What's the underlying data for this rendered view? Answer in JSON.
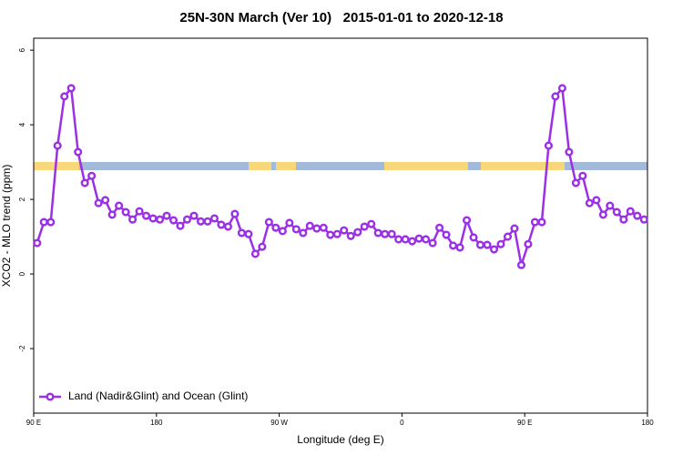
{
  "chart_data": {
    "type": "line",
    "title": "25N-30N March (Ver 10)   2015-01-01 to 2020-12-18",
    "x_label": "Longitude (deg E)",
    "y_label": "XCO2 - MLO trend (ppm)",
    "xlim": [
      90,
      540
    ],
    "xticks": [
      {
        "value": 90,
        "label": "90 E"
      },
      {
        "value": 180,
        "label": "180"
      },
      {
        "value": 270,
        "label": "90 W"
      },
      {
        "value": 360,
        "label": "0"
      },
      {
        "value": 450,
        "label": "90 E"
      },
      {
        "value": 540,
        "label": "180"
      }
    ],
    "ylim": [
      -3.73,
      6.32
    ],
    "yticks": [
      -2,
      0,
      2,
      4,
      6
    ],
    "grid": false,
    "legend_position": "bottom-left",
    "series": [
      {
        "name": "Land (Nadir&Glint) and Ocean (Glint)",
        "color": "#9b30e6",
        "x": [
          92.5,
          97.5,
          102.5,
          107.5,
          112.5,
          117.5,
          122.5,
          127.5,
          132.5,
          137.5,
          142.5,
          147.5,
          152.5,
          157.5,
          162.5,
          167.5,
          172.5,
          177.5,
          182.5,
          187.5,
          192.5,
          197.5,
          202.5,
          207.5,
          212.5,
          217.5,
          222.5,
          227.5,
          232.5,
          237.5,
          242.5,
          247.5,
          252.5,
          257.5,
          262.5,
          267.5,
          272.5,
          277.5,
          282.5,
          287.5,
          292.5,
          297.5,
          302.5,
          307.5,
          312.5,
          317.5,
          322.5,
          327.5,
          332.5,
          337.5,
          342.5,
          347.5,
          352.5,
          357.5,
          362.5,
          367.5,
          372.5,
          377.5,
          382.5,
          387.5,
          392.5,
          397.5,
          402.5,
          407.5,
          412.5,
          417.5,
          422.5,
          427.5,
          432.5,
          437.5,
          442.5,
          447.5,
          452.5,
          457.5,
          462.5,
          467.5,
          472.5,
          477.5,
          482.5,
          487.5,
          492.5,
          497.5,
          502.5,
          507.5,
          512.5,
          517.5,
          522.5,
          527.5,
          532.5,
          537.5
        ],
        "values": [
          0.83,
          1.39,
          1.39,
          3.44,
          4.76,
          4.98,
          3.27,
          2.44,
          2.63,
          1.9,
          1.98,
          1.59,
          1.83,
          1.66,
          1.46,
          1.68,
          1.56,
          1.49,
          1.46,
          1.56,
          1.44,
          1.29,
          1.46,
          1.56,
          1.41,
          1.41,
          1.49,
          1.32,
          1.27,
          1.61,
          1.1,
          1.07,
          0.54,
          0.73,
          1.39,
          1.24,
          1.15,
          1.37,
          1.2,
          1.1,
          1.29,
          1.22,
          1.24,
          1.05,
          1.07,
          1.17,
          1.02,
          1.12,
          1.27,
          1.34,
          1.1,
          1.07,
          1.07,
          0.93,
          0.93,
          0.88,
          0.95,
          0.93,
          0.83,
          1.24,
          1.05,
          0.76,
          0.71,
          1.44,
          0.98,
          0.78,
          0.78,
          0.66,
          0.8,
          1.0,
          1.22,
          0.24,
          0.8,
          1.39,
          1.39,
          3.44,
          4.76,
          4.98,
          3.27,
          2.44,
          2.63,
          1.9,
          1.98,
          1.59,
          1.83,
          1.66,
          1.46,
          1.68,
          1.56,
          1.46
        ]
      }
    ]
  }
}
